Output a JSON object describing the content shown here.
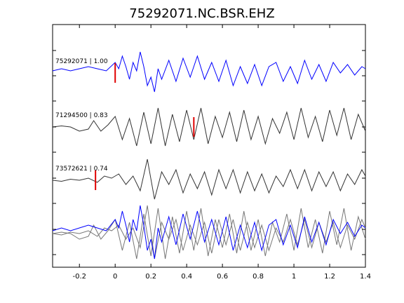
{
  "chart_data": {
    "type": "line",
    "title": "75292071.NC.BSR.EHZ",
    "xlabel": "",
    "ylabel": "",
    "xlim": [
      -0.35,
      1.4
    ],
    "xticks": [
      -0.2,
      0,
      0.2,
      0.4,
      0.6,
      0.8,
      1.0,
      1.2,
      1.4
    ],
    "xtick_labels": [
      "-0.2",
      "0",
      "0.2",
      "0.4",
      "0.6",
      "0.8",
      "1",
      "1.2",
      "1.4"
    ],
    "grid": false,
    "legend": "none",
    "traces": [
      {
        "label": "75292071 | 1.00",
        "color": "#0000ff",
        "pick_time": 0.0,
        "x": [
          -0.35,
          -0.3,
          -0.25,
          -0.2,
          -0.15,
          -0.1,
          -0.05,
          0,
          0.02,
          0.04,
          0.06,
          0.08,
          0.1,
          0.12,
          0.14,
          0.16,
          0.18,
          0.2,
          0.22,
          0.24,
          0.26,
          0.3,
          0.34,
          0.38,
          0.42,
          0.46,
          0.5,
          0.54,
          0.58,
          0.62,
          0.66,
          0.7,
          0.74,
          0.78,
          0.82,
          0.86,
          0.9,
          0.94,
          0.98,
          1.02,
          1.06,
          1.1,
          1.14,
          1.18,
          1.22,
          1.26,
          1.3,
          1.34,
          1.38,
          1.4
        ],
        "y": [
          0.1,
          0.2,
          0.1,
          0.2,
          0.3,
          0.2,
          0.1,
          0.5,
          0.2,
          0.8,
          0.3,
          -0.3,
          0.5,
          0.1,
          1.0,
          0.3,
          -0.6,
          -0.2,
          -0.9,
          0.2,
          -0.3,
          0.6,
          -0.4,
          0.7,
          -0.2,
          0.8,
          -0.3,
          0.5,
          -0.4,
          0.6,
          -0.6,
          0.3,
          -0.5,
          0.4,
          -0.6,
          0.3,
          0.5,
          -0.4,
          0.3,
          -0.5,
          0.6,
          -0.3,
          0.4,
          -0.4,
          0.5,
          0.0,
          0.4,
          -0.1,
          0.3,
          0.2
        ]
      },
      {
        "label": "71294500 | 0.83",
        "color": "#333333",
        "pick_time": 0.44,
        "x": [
          -0.35,
          -0.3,
          -0.25,
          -0.2,
          -0.15,
          -0.12,
          -0.08,
          -0.04,
          0.0,
          0.04,
          0.08,
          0.12,
          0.16,
          0.2,
          0.24,
          0.28,
          0.32,
          0.36,
          0.4,
          0.44,
          0.48,
          0.52,
          0.56,
          0.6,
          0.64,
          0.68,
          0.72,
          0.76,
          0.8,
          0.84,
          0.88,
          0.92,
          0.96,
          1.0,
          1.04,
          1.08,
          1.12,
          1.16,
          1.2,
          1.24,
          1.28,
          1.32,
          1.36,
          1.4
        ],
        "y": [
          0.0,
          0.05,
          0.0,
          -0.2,
          -0.1,
          0.3,
          -0.2,
          0.1,
          0.5,
          -0.6,
          0.4,
          -0.9,
          0.7,
          -0.8,
          0.9,
          -0.9,
          0.6,
          -0.7,
          0.8,
          -0.6,
          0.9,
          -0.8,
          0.5,
          -0.5,
          0.7,
          -0.7,
          0.8,
          -0.6,
          0.5,
          -0.8,
          0.4,
          -0.3,
          0.7,
          -0.6,
          0.9,
          -0.5,
          0.5,
          -0.7,
          0.8,
          -0.4,
          0.9,
          -0.6,
          0.6,
          -0.2
        ]
      },
      {
        "label": "73572621 | 0.74",
        "color": "#333333",
        "pick_time": -0.11,
        "x": [
          -0.35,
          -0.3,
          -0.25,
          -0.2,
          -0.15,
          -0.1,
          -0.06,
          -0.02,
          0.02,
          0.06,
          0.1,
          0.14,
          0.18,
          0.22,
          0.26,
          0.3,
          0.34,
          0.38,
          0.42,
          0.46,
          0.5,
          0.54,
          0.58,
          0.62,
          0.66,
          0.7,
          0.74,
          0.78,
          0.82,
          0.86,
          0.9,
          0.94,
          0.98,
          1.02,
          1.06,
          1.1,
          1.14,
          1.18,
          1.22,
          1.26,
          1.3,
          1.34,
          1.38,
          1.4
        ],
        "y": [
          0.0,
          -0.05,
          0.05,
          0.0,
          0.1,
          -0.1,
          0.2,
          0.1,
          0.3,
          -0.2,
          0.2,
          -0.5,
          1.0,
          -0.9,
          0.4,
          -0.2,
          0.5,
          -0.6,
          0.3,
          -0.4,
          0.4,
          -0.7,
          0.5,
          -0.4,
          0.5,
          -0.6,
          0.4,
          -0.5,
          0.3,
          -0.6,
          0.2,
          -0.3,
          0.5,
          -0.4,
          0.5,
          -0.5,
          0.4,
          -0.3,
          0.4,
          -0.5,
          0.3,
          -0.2,
          0.5,
          0.2
        ]
      }
    ]
  }
}
